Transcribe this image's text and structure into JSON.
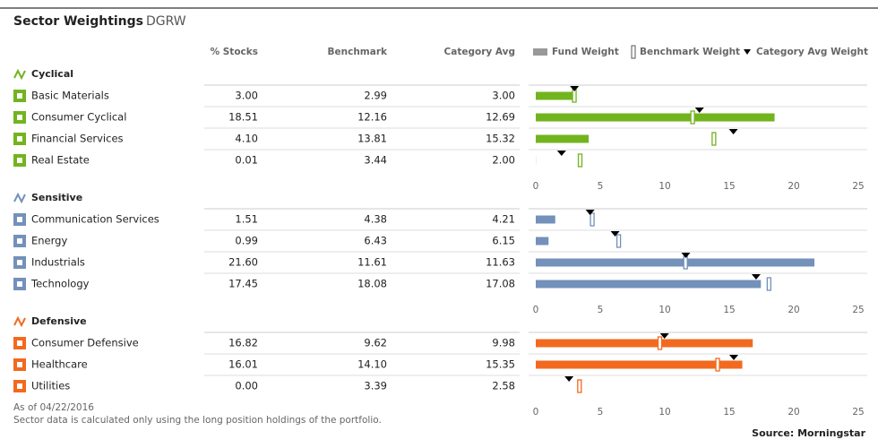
{
  "header": {
    "title": "Sector Weightings",
    "ticker": "DGRW"
  },
  "columns": [
    "% Stocks",
    "Benchmark",
    "Category Avg"
  ],
  "legend": {
    "items": [
      "Fund Weight",
      "Benchmark Weight",
      "Category Avg Weight"
    ],
    "fund_color": "#999999"
  },
  "axis": {
    "xlim": [
      0,
      25
    ],
    "xticks": [
      0,
      5,
      10,
      15,
      20,
      25
    ]
  },
  "groups": [
    {
      "name": "Cyclical",
      "color": "#72b41e",
      "rows": [
        {
          "name": "Basic Materials",
          "values": [
            3,
            2.99,
            3
          ],
          "value_labels": [
            "3.00",
            "2.99",
            "3.00"
          ]
        },
        {
          "name": "Consumer Cyclical",
          "values": [
            18.51,
            12.16,
            12.69
          ],
          "value_labels": [
            "18.51",
            "12.16",
            "12.69"
          ]
        },
        {
          "name": "Financial Services",
          "values": [
            4.1,
            13.81,
            15.32
          ],
          "value_labels": [
            "4.10",
            "13.81",
            "15.32"
          ]
        },
        {
          "name": "Real Estate",
          "values": [
            0.01,
            3.44,
            2
          ],
          "value_labels": [
            "0.01",
            "3.44",
            "2.00"
          ]
        }
      ]
    },
    {
      "name": "Sensitive",
      "color": "#7391b9",
      "rows": [
        {
          "name": "Communication Services",
          "values": [
            1.51,
            4.38,
            4.21
          ],
          "value_labels": [
            "1.51",
            "4.38",
            "4.21"
          ]
        },
        {
          "name": "Energy",
          "values": [
            0.99,
            6.43,
            6.15
          ],
          "value_labels": [
            "0.99",
            "6.43",
            "6.15"
          ]
        },
        {
          "name": "Industrials",
          "values": [
            21.6,
            11.61,
            11.63
          ],
          "value_labels": [
            "21.60",
            "11.61",
            "11.63"
          ]
        },
        {
          "name": "Technology",
          "values": [
            17.45,
            18.08,
            17.08
          ],
          "value_labels": [
            "17.45",
            "18.08",
            "17.08"
          ]
        }
      ]
    },
    {
      "name": "Defensive",
      "color": "#f26a1f",
      "rows": [
        {
          "name": "Consumer Defensive",
          "values": [
            16.82,
            9.62,
            9.98
          ],
          "value_labels": [
            "16.82",
            "9.62",
            "9.98"
          ]
        },
        {
          "name": "Healthcare",
          "values": [
            16.01,
            14.1,
            15.35
          ],
          "value_labels": [
            "16.01",
            "14.10",
            "15.35"
          ]
        },
        {
          "name": "Utilities",
          "values": [
            0,
            3.39,
            2.58
          ],
          "value_labels": [
            "0.00",
            "3.39",
            "2.58"
          ]
        }
      ]
    }
  ],
  "footer": {
    "date": "As of 04/22/2016",
    "note": "Sector data is calculated only using the long position holdings of the portfolio.",
    "source": "Source: Morningstar"
  }
}
